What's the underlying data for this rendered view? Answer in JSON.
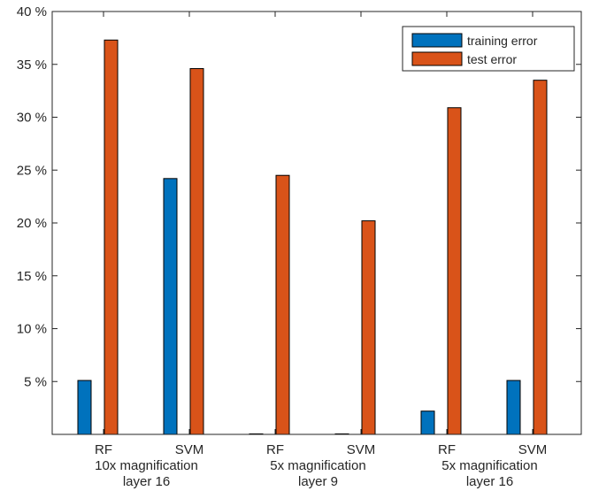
{
  "chart_data": {
    "type": "bar",
    "title": "",
    "xlabel": "",
    "ylabel": "",
    "ylim": [
      0,
      40
    ],
    "yticks": [
      5,
      10,
      15,
      20,
      25,
      30,
      35,
      40
    ],
    "ytick_suffix": " %",
    "grid": false,
    "legend_position": "top-right",
    "groups": [
      {
        "line1": "10x magnification",
        "line2": "layer 16"
      },
      {
        "line1": "5x magnification",
        "line2": "layer 9"
      },
      {
        "line1": "5x magnification",
        "line2": "layer 16"
      }
    ],
    "categories": [
      "RF",
      "SVM",
      "RF",
      "SVM",
      "RF",
      "SVM"
    ],
    "series": [
      {
        "name": "training error",
        "color": "#0072BD",
        "values": [
          5.1,
          24.2,
          0.0,
          0.0,
          2.2,
          5.1
        ]
      },
      {
        "name": "test error",
        "color": "#D95319",
        "values": [
          37.3,
          34.6,
          24.5,
          20.2,
          30.9,
          33.5
        ]
      }
    ]
  }
}
